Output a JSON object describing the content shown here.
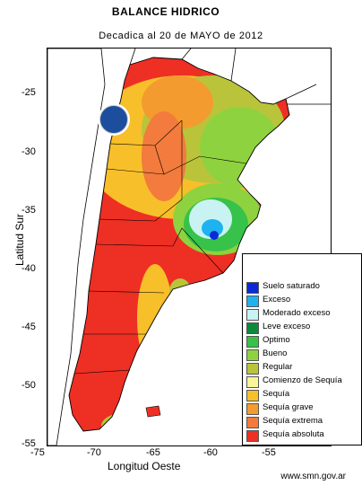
{
  "title": "BALANCE HIDRICO",
  "subtitle": "Decadica al 20 de MAYO de 2012",
  "axes": {
    "ylabel": "Latitud Sur",
    "xlabel": "Longitud Oeste",
    "yticks": [
      "-25",
      "-30",
      "-35",
      "-40",
      "-45",
      "-50",
      "-55"
    ],
    "xticks": [
      "-75",
      "-70",
      "-65",
      "-60",
      "-55"
    ]
  },
  "source": "www.smn.gov.ar",
  "legend": [
    {
      "label": "Suelo saturado",
      "color": "#0a2ad8"
    },
    {
      "label": "Exceso",
      "color": "#1fb2f0"
    },
    {
      "label": "Moderado exceso",
      "color": "#c9f3f3"
    },
    {
      "label": "Leve exceso",
      "color": "#0a8a3a"
    },
    {
      "label": "Optimo",
      "color": "#37c24a"
    },
    {
      "label": "Bueno",
      "color": "#8fd23f"
    },
    {
      "label": "Regular",
      "color": "#b9c43a"
    },
    {
      "label": "Comienzo de Sequía",
      "color": "#fbf59a"
    },
    {
      "label": "Sequía",
      "color": "#f7bf2a"
    },
    {
      "label": "Sequía grave",
      "color": "#f49b2f"
    },
    {
      "label": "Sequía extrema",
      "color": "#f27b3d"
    },
    {
      "label": "Sequía absoluta",
      "color": "#ee2f24"
    }
  ]
}
